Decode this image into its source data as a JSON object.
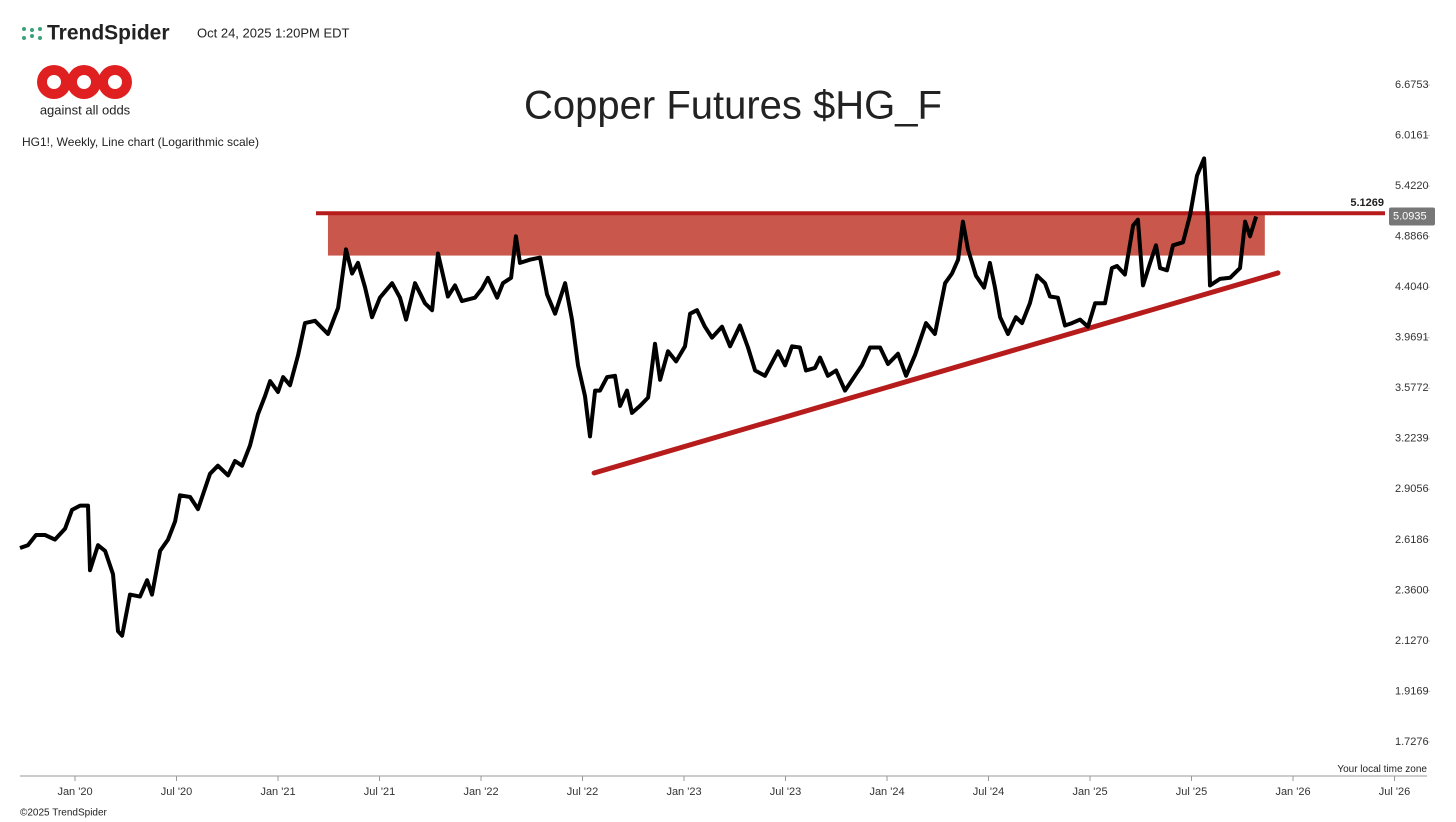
{
  "brand": "TrendSpider",
  "timestamp": "Oct 24, 2025 1:20PM EDT",
  "logo_text": "against all odds",
  "footer": "©2025 TrendSpider",
  "timezone_note": "Your local time zone",
  "chart_data": {
    "type": "line",
    "title": "Copper Futures $HG_F",
    "subtitle": "HG1!, Weekly, Line chart (Logarithmic scale)",
    "log_scale": true,
    "xlim": [
      2019.729,
      2026.66
    ],
    "ylim": [
      1.611,
      7.028
    ],
    "xticks": [
      {
        "value": 2020,
        "label": "Jan '20"
      },
      {
        "value": 2020.5,
        "label": "Jul '20"
      },
      {
        "value": 2021,
        "label": "Jan '21"
      },
      {
        "value": 2021.5,
        "label": "Jul '21"
      },
      {
        "value": 2022,
        "label": "Jan '22"
      },
      {
        "value": 2022.5,
        "label": "Jul '22"
      },
      {
        "value": 2023,
        "label": "Jan '23"
      },
      {
        "value": 2023.5,
        "label": "Jul '23"
      },
      {
        "value": 2024,
        "label": "Jan '24"
      },
      {
        "value": 2024.5,
        "label": "Jul '24"
      },
      {
        "value": 2025,
        "label": "Jan '25"
      },
      {
        "value": 2025.5,
        "label": "Jul '25"
      },
      {
        "value": 2026,
        "label": "Jan '26"
      },
      {
        "value": 2026.5,
        "label": "Jul '26"
      }
    ],
    "yticks": [
      6.6753,
      6.0161,
      {
        "value": 5.422,
        "label": "5.4220"
      },
      4.8866,
      {
        "value": 4.404,
        "label": "4.4040"
      },
      3.9691,
      3.5772,
      3.2239,
      2.9056,
      2.6186,
      {
        "value": 2.36,
        "label": "2.3600"
      },
      {
        "value": 2.127,
        "label": "2.1270"
      },
      1.9169,
      1.7276
    ],
    "series": [
      {
        "name": "HG1!",
        "color": "#000000",
        "x": [
          2019.729,
          2019.768,
          2019.808,
          2019.852,
          2019.901,
          2019.951,
          2019.985,
          2020.025,
          2020.064,
          2020.074,
          2020.113,
          2020.148,
          2020.187,
          2020.212,
          2020.232,
          2020.271,
          2020.32,
          2020.355,
          2020.379,
          2020.419,
          2020.458,
          2020.493,
          2020.517,
          2020.567,
          2020.606,
          2020.665,
          2020.704,
          2020.754,
          2020.788,
          2020.823,
          2020.862,
          2020.901,
          2020.936,
          2020.961,
          2021.0,
          2021.025,
          2021.059,
          2021.099,
          2021.133,
          2021.182,
          2021.246,
          2021.296,
          2021.335,
          2021.365,
          2021.394,
          2021.429,
          2021.463,
          2021.502,
          2021.562,
          2021.601,
          2021.631,
          2021.675,
          2021.724,
          2021.759,
          2021.788,
          2021.837,
          2021.872,
          2021.906,
          2021.97,
          2022.005,
          2022.034,
          2022.079,
          2022.108,
          2022.148,
          2022.172,
          2022.192,
          2022.241,
          2022.291,
          2022.325,
          2022.365,
          2022.414,
          2022.448,
          2022.478,
          2022.512,
          2022.537,
          2022.562,
          2022.586,
          2022.621,
          2022.66,
          2022.685,
          2022.719,
          2022.744,
          2022.783,
          2022.823,
          2022.857,
          2022.882,
          2022.921,
          2022.961,
          2023.005,
          2023.03,
          2023.064,
          2023.103,
          2023.138,
          2023.187,
          2023.227,
          2023.276,
          2023.315,
          2023.35,
          2023.399,
          2023.463,
          2023.498,
          2023.532,
          2023.571,
          2023.601,
          2023.645,
          2023.67,
          2023.709,
          2023.749,
          2023.793,
          2023.842,
          2023.877,
          2023.916,
          2023.966,
          2024.005,
          2024.054,
          2024.094,
          2024.138,
          2024.192,
          2024.236,
          2024.286,
          2024.32,
          2024.35,
          2024.374,
          2024.399,
          2024.438,
          2024.478,
          2024.507,
          2024.532,
          2024.557,
          2024.596,
          2024.635,
          2024.665,
          2024.704,
          2024.739,
          2024.778,
          2024.803,
          2024.842,
          2024.877,
          2024.911,
          2024.951,
          2024.99,
          2025.025,
          2025.074,
          2025.108,
          2025.133,
          2025.172,
          2025.212,
          2025.236,
          2025.261,
          2025.296,
          2025.325,
          2025.345,
          2025.379,
          2025.409,
          2025.458,
          2025.493,
          2025.527,
          2025.562,
          2025.581,
          2025.591,
          2025.64,
          2025.69,
          2025.739,
          2025.764,
          2025.788,
          2025.818
        ],
        "values": [
          2.575,
          2.59,
          2.645,
          2.645,
          2.62,
          2.68,
          2.785,
          2.81,
          2.81,
          2.46,
          2.59,
          2.56,
          2.44,
          2.17,
          2.15,
          2.34,
          2.33,
          2.41,
          2.34,
          2.56,
          2.62,
          2.72,
          2.87,
          2.86,
          2.79,
          3.0,
          3.05,
          2.99,
          3.08,
          3.05,
          3.18,
          3.39,
          3.52,
          3.63,
          3.55,
          3.66,
          3.6,
          3.83,
          4.09,
          4.11,
          4.0,
          4.22,
          4.76,
          4.53,
          4.63,
          4.4,
          4.14,
          4.31,
          4.44,
          4.31,
          4.12,
          4.44,
          4.26,
          4.2,
          4.72,
          4.32,
          4.42,
          4.28,
          4.31,
          4.39,
          4.49,
          4.31,
          4.44,
          4.49,
          4.89,
          4.63,
          4.66,
          4.68,
          4.34,
          4.17,
          4.44,
          4.12,
          3.75,
          3.52,
          3.24,
          3.56,
          3.56,
          3.66,
          3.67,
          3.45,
          3.56,
          3.4,
          3.45,
          3.51,
          3.92,
          3.64,
          3.86,
          3.78,
          3.9,
          4.17,
          4.2,
          4.06,
          3.97,
          4.06,
          3.9,
          4.07,
          3.89,
          3.71,
          3.67,
          3.86,
          3.75,
          3.9,
          3.89,
          3.71,
          3.73,
          3.81,
          3.67,
          3.71,
          3.56,
          3.67,
          3.75,
          3.89,
          3.89,
          3.76,
          3.84,
          3.67,
          3.83,
          4.09,
          4.0,
          4.44,
          4.53,
          4.66,
          5.04,
          4.76,
          4.51,
          4.4,
          4.63,
          4.4,
          4.14,
          4.0,
          4.14,
          4.09,
          4.26,
          4.51,
          4.44,
          4.32,
          4.31,
          4.07,
          4.09,
          4.12,
          4.06,
          4.26,
          4.26,
          4.58,
          4.6,
          4.52,
          5.0,
          5.06,
          4.42,
          4.63,
          4.8,
          4.58,
          4.56,
          4.8,
          4.83,
          5.11,
          5.54,
          5.74,
          5.04,
          4.42,
          4.48,
          4.49,
          4.58,
          5.04,
          4.89,
          5.0935
        ]
      }
    ],
    "last_price": 5.0935,
    "resistance_level": 5.1269,
    "resistance_color": "#b71c1c",
    "resistance_zone": {
      "x": [
        2021.246,
        2025.861
      ],
      "values": [
        4.7,
        5.11
      ],
      "color": "#c0392b"
    },
    "trendline": {
      "x": [
        2022.557,
        2025.926
      ],
      "values": [
        3.005,
        4.535
      ],
      "color": "#b71c1c"
    }
  }
}
